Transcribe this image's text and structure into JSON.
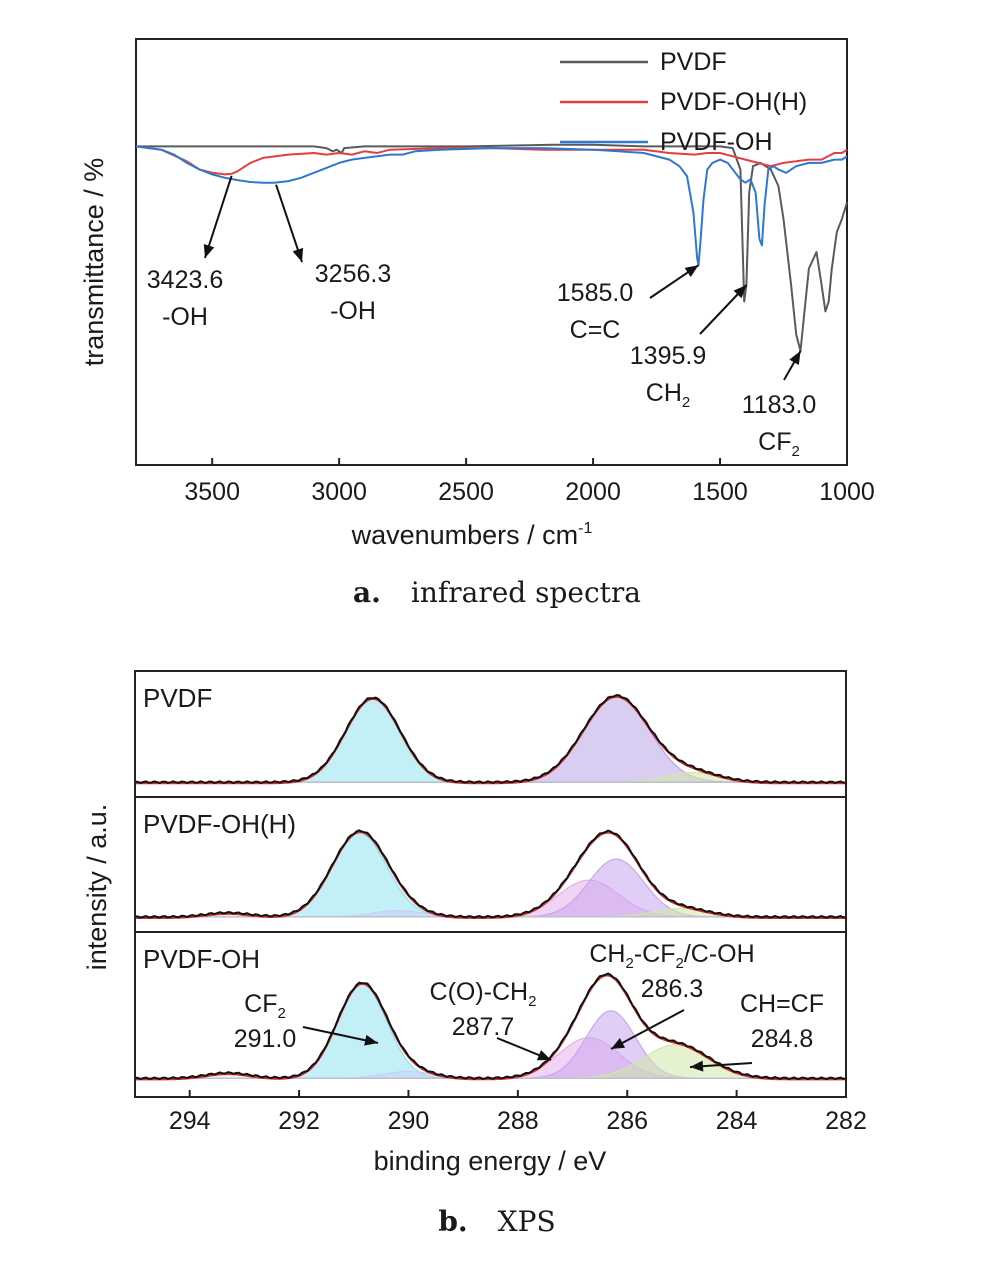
{
  "chart_data": [
    {
      "type": "line",
      "caption_letter": "a.",
      "caption": "infrared spectra",
      "xlabel": "wavenumbers / cm",
      "xlabel_sup": "-1",
      "ylabel": "transmittance / %",
      "xlim": [
        3800,
        1000
      ],
      "x_reversed": true,
      "ylim": [
        0,
        1
      ],
      "y_ticks_shown": false,
      "x_ticks": [
        3500,
        3000,
        2500,
        2000,
        1500,
        1000
      ],
      "legend_position": "top-right",
      "series": [
        {
          "name": "PVDF",
          "color": "#5a5a5a",
          "points": [
            [
              3800,
              0.92
            ],
            [
              3700,
              0.92
            ],
            [
              3400,
              0.92
            ],
            [
              3100,
              0.92
            ],
            [
              3050,
              0.915
            ],
            [
              3025,
              0.905
            ],
            [
              3010,
              0.91
            ],
            [
              2990,
              0.9
            ],
            [
              2980,
              0.915
            ],
            [
              2900,
              0.92
            ],
            [
              2500,
              0.92
            ],
            [
              2160,
              0.925
            ],
            [
              2000,
              0.925
            ],
            [
              1800,
              0.92
            ],
            [
              1700,
              0.92
            ],
            [
              1600,
              0.92
            ],
            [
              1500,
              0.92
            ],
            [
              1450,
              0.915
            ],
            [
              1420,
              0.85
            ],
            [
              1405,
              0.45
            ],
            [
              1396,
              0.5
            ],
            [
              1385,
              0.78
            ],
            [
              1370,
              0.86
            ],
            [
              1340,
              0.87
            ],
            [
              1300,
              0.85
            ],
            [
              1270,
              0.8
            ],
            [
              1250,
              0.7
            ],
            [
              1220,
              0.5
            ],
            [
              1200,
              0.35
            ],
            [
              1183,
              0.3
            ],
            [
              1170,
              0.4
            ],
            [
              1150,
              0.55
            ],
            [
              1120,
              0.6
            ],
            [
              1100,
              0.5
            ],
            [
              1085,
              0.42
            ],
            [
              1072,
              0.45
            ],
            [
              1060,
              0.55
            ],
            [
              1040,
              0.66
            ],
            [
              1020,
              0.7
            ],
            [
              1000,
              0.75
            ]
          ]
        },
        {
          "name": "PVDF-OH(H)",
          "color": "#e04040",
          "points": [
            [
              3800,
              0.92
            ],
            [
              3700,
              0.91
            ],
            [
              3600,
              0.875
            ],
            [
              3550,
              0.85
            ],
            [
              3500,
              0.84
            ],
            [
              3450,
              0.835
            ],
            [
              3423.6,
              0.837
            ],
            [
              3400,
              0.845
            ],
            [
              3350,
              0.87
            ],
            [
              3300,
              0.885
            ],
            [
              3250,
              0.89
            ],
            [
              3200,
              0.895
            ],
            [
              3100,
              0.9
            ],
            [
              3050,
              0.895
            ],
            [
              3000,
              0.9
            ],
            [
              2950,
              0.895
            ],
            [
              2900,
              0.905
            ],
            [
              2850,
              0.9
            ],
            [
              2800,
              0.91
            ],
            [
              2600,
              0.915
            ],
            [
              2400,
              0.915
            ],
            [
              2200,
              0.91
            ],
            [
              2000,
              0.91
            ],
            [
              1800,
              0.91
            ],
            [
              1700,
              0.9
            ],
            [
              1600,
              0.895
            ],
            [
              1550,
              0.9
            ],
            [
              1500,
              0.9
            ],
            [
              1450,
              0.89
            ],
            [
              1400,
              0.88
            ],
            [
              1350,
              0.87
            ],
            [
              1300,
              0.86
            ],
            [
              1250,
              0.87
            ],
            [
              1200,
              0.875
            ],
            [
              1150,
              0.88
            ],
            [
              1100,
              0.88
            ],
            [
              1050,
              0.9
            ],
            [
              1020,
              0.9
            ],
            [
              1000,
              0.91
            ]
          ]
        },
        {
          "name": "PVDF-OH",
          "color": "#2f78d0",
          "points": [
            [
              3800,
              0.92
            ],
            [
              3700,
              0.91
            ],
            [
              3650,
              0.895
            ],
            [
              3600,
              0.87
            ],
            [
              3550,
              0.85
            ],
            [
              3500,
              0.835
            ],
            [
              3450,
              0.825
            ],
            [
              3400,
              0.818
            ],
            [
              3350,
              0.812
            ],
            [
              3300,
              0.81
            ],
            [
              3256.3,
              0.81
            ],
            [
              3200,
              0.815
            ],
            [
              3150,
              0.825
            ],
            [
              3100,
              0.84
            ],
            [
              3050,
              0.855
            ],
            [
              3000,
              0.87
            ],
            [
              2950,
              0.88
            ],
            [
              2900,
              0.885
            ],
            [
              2850,
              0.89
            ],
            [
              2800,
              0.895
            ],
            [
              2750,
              0.895
            ],
            [
              2700,
              0.905
            ],
            [
              2600,
              0.91
            ],
            [
              2400,
              0.915
            ],
            [
              2200,
              0.915
            ],
            [
              2000,
              0.91
            ],
            [
              1900,
              0.905
            ],
            [
              1800,
              0.9
            ],
            [
              1700,
              0.88
            ],
            [
              1660,
              0.86
            ],
            [
              1630,
              0.83
            ],
            [
              1605,
              0.72
            ],
            [
              1590,
              0.58
            ],
            [
              1585,
              0.56
            ],
            [
              1578,
              0.62
            ],
            [
              1565,
              0.76
            ],
            [
              1550,
              0.85
            ],
            [
              1530,
              0.87
            ],
            [
              1500,
              0.88
            ],
            [
              1470,
              0.87
            ],
            [
              1440,
              0.84
            ],
            [
              1420,
              0.82
            ],
            [
              1400,
              0.81
            ],
            [
              1380,
              0.82
            ],
            [
              1360,
              0.78
            ],
            [
              1345,
              0.64
            ],
            [
              1335,
              0.62
            ],
            [
              1325,
              0.74
            ],
            [
              1310,
              0.85
            ],
            [
              1290,
              0.86
            ],
            [
              1270,
              0.85
            ],
            [
              1240,
              0.84
            ],
            [
              1200,
              0.86
            ],
            [
              1150,
              0.87
            ],
            [
              1100,
              0.87
            ],
            [
              1050,
              0.88
            ],
            [
              1020,
              0.88
            ],
            [
              1000,
              0.89
            ]
          ]
        }
      ],
      "annotations": [
        {
          "label": "3423.6",
          "label2": "-OH",
          "sub2": "",
          "x": 3423.6,
          "y": 0.837
        },
        {
          "label": "3256.3",
          "label2": "-OH",
          "sub2": "",
          "x": 3256.3,
          "y": 0.81
        },
        {
          "label": "1585.0",
          "label2": "C=C",
          "sub2": "",
          "x": 1585.0,
          "y": 0.56
        },
        {
          "label": "1395.9",
          "label2": "CH",
          "sub2": "2",
          "x": 1395.9,
          "y": 0.5
        },
        {
          "label": "1183.0",
          "label2": "CF",
          "sub2": "2",
          "x": 1183.0,
          "y": 0.3
        }
      ]
    },
    {
      "type": "area",
      "caption_letter": "b.",
      "caption": "XPS",
      "xlabel": "binding energy / eV",
      "ylabel": "intensity / a.u.",
      "xlim": [
        295,
        282
      ],
      "x_reversed": true,
      "x_ticks": [
        294,
        292,
        290,
        288,
        286,
        284,
        282
      ],
      "y_ticks_shown": false,
      "panels": [
        {
          "name": "PVDF",
          "baseline": 0.03,
          "components": [
            {
              "center": 290.65,
              "sigma": 0.5,
              "height": 0.88,
              "color": "#8fe3ee"
            },
            {
              "center": 286.2,
              "sigma": 0.6,
              "height": 0.9,
              "color": "#b9a6e6"
            },
            {
              "center": 284.8,
              "sigma": 0.5,
              "height": 0.1,
              "color": "#cfe8a8"
            }
          ],
          "annotations": []
        },
        {
          "name": "PVDF-OH(H)",
          "baseline": 0.03,
          "components": [
            {
              "center": 290.9,
              "sigma": 0.5,
              "height": 0.8,
              "color": "#8fe3ee"
            },
            {
              "center": 290.2,
              "sigma": 0.45,
              "height": 0.06,
              "color": "#c7d0f4"
            },
            {
              "center": 286.7,
              "sigma": 0.55,
              "height": 0.35,
              "color": "#e5b0ea"
            },
            {
              "center": 286.2,
              "sigma": 0.5,
              "height": 0.55,
              "color": "#c9a6ef"
            },
            {
              "center": 285.0,
              "sigma": 0.5,
              "height": 0.08,
              "color": "#cfe8a8"
            },
            {
              "center": 293.3,
              "sigma": 0.4,
              "height": 0.04,
              "color": "#e6e6e6"
            }
          ],
          "annotations": []
        },
        {
          "name": "PVDF-OH",
          "baseline": 0.05,
          "components": [
            {
              "center": 290.85,
              "sigma": 0.45,
              "height": 0.7,
              "color": "#8fe3ee"
            },
            {
              "center": 290.0,
              "sigma": 0.45,
              "height": 0.05,
              "color": "#c7d0f4"
            },
            {
              "center": 286.7,
              "sigma": 0.55,
              "height": 0.3,
              "color": "#e5b0ea"
            },
            {
              "center": 286.3,
              "sigma": 0.45,
              "height": 0.5,
              "color": "#c9a6ef"
            },
            {
              "center": 285.1,
              "sigma": 0.6,
              "height": 0.25,
              "color": "#cfe8a8"
            },
            {
              "center": 293.3,
              "sigma": 0.4,
              "height": 0.04,
              "color": "#e6e6e6"
            }
          ],
          "annotations": [
            {
              "l1": "CF",
              "l1sub": "2",
              "l1rest": "",
              "l2": "291.0",
              "x": 290.7,
              "yfrac": 0.5
            },
            {
              "l1": "C(O)-CH",
              "l1sub": "2",
              "l1rest": "",
              "l2": "287.7",
              "x": 287.3,
              "yfrac": 0.2
            },
            {
              "l1": "CH",
              "l1sub": "2",
              "l1rest": "-CF",
              "l1sub2": "2",
              "l1rest2": "/C-OH",
              "l2": "286.3",
              "x": 286.4,
              "yfrac": 0.3
            },
            {
              "l1": "CH=CF",
              "l1sub": "",
              "l1rest": "",
              "l2": "284.8",
              "x": 284.9,
              "yfrac": 0.15
            }
          ]
        }
      ],
      "fit_color": "#d93030",
      "envelope_color": "#111111"
    }
  ]
}
